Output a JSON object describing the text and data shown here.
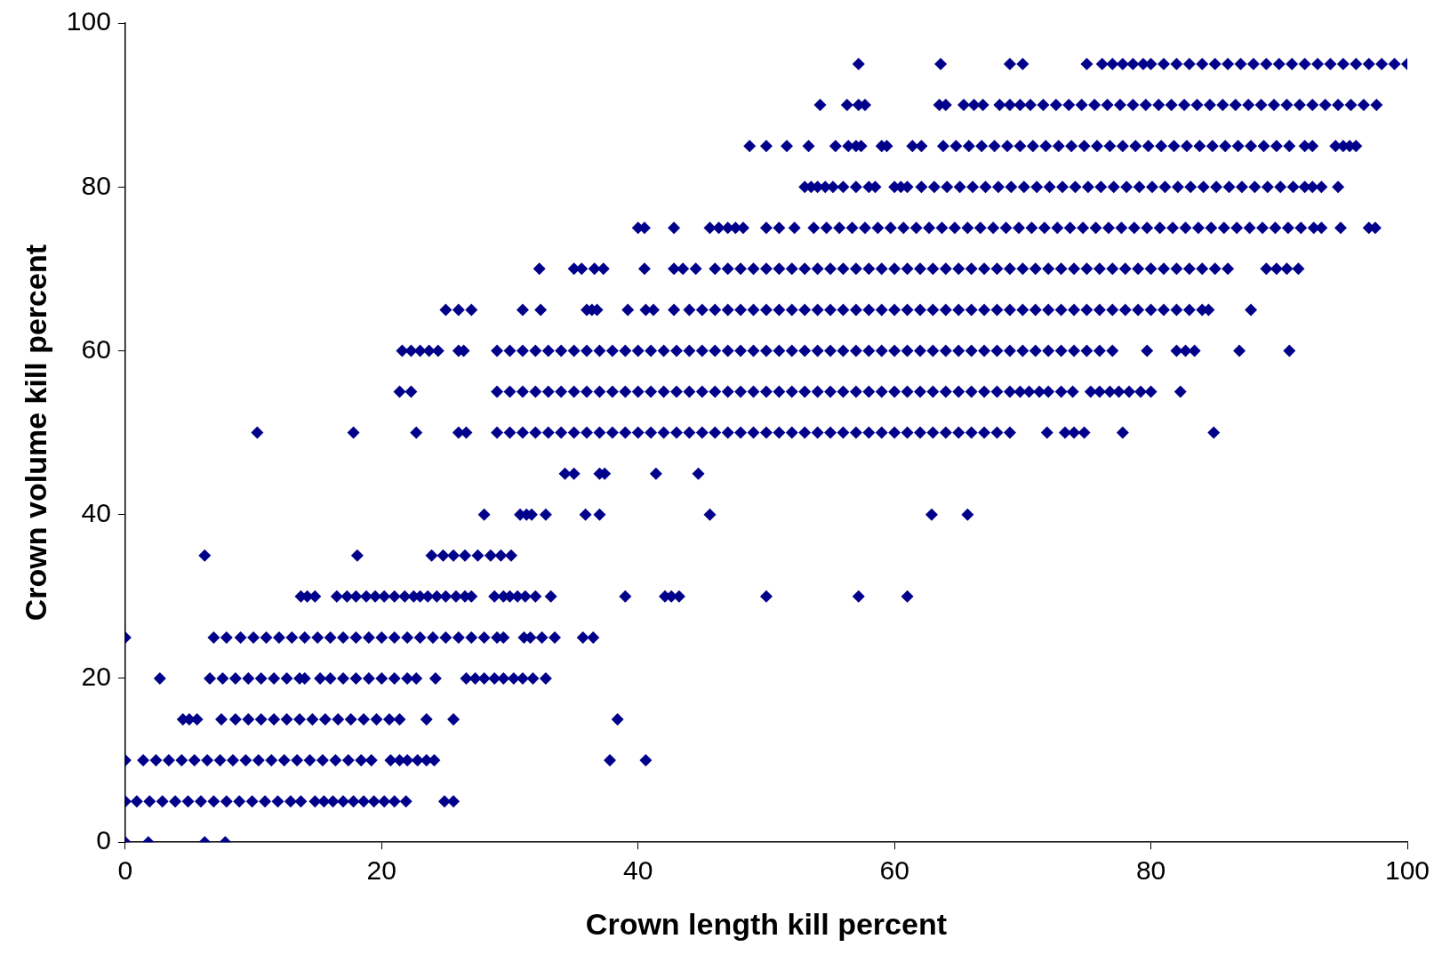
{
  "chart_data": {
    "type": "scatter",
    "xlabel": "Crown length kill percent",
    "ylabel": "Crown volume kill percent",
    "xlim": [
      0,
      100
    ],
    "ylim": [
      0,
      100
    ],
    "xticks": [
      0,
      20,
      40,
      60,
      80,
      100
    ],
    "yticks": [
      0,
      20,
      40,
      60,
      80,
      100
    ],
    "grid": false,
    "legend": false,
    "marker": "diamond",
    "series": [
      {
        "color": "#00008b",
        "x": [
          57.2,
          63.6,
          69,
          70,
          75,
          76.2,
          77,
          77.8,
          78.6,
          79.4,
          80,
          81,
          82,
          83,
          84,
          85,
          86,
          87,
          88,
          89,
          90,
          91,
          92,
          93,
          94,
          95,
          96,
          97,
          98,
          99,
          100
        ],
        "values": [
          95,
          95,
          95,
          95,
          95,
          95,
          95,
          95,
          95,
          95,
          95,
          95,
          95,
          95,
          95,
          95,
          95,
          95,
          95,
          95,
          95,
          95,
          95,
          95,
          95,
          95,
          95,
          95,
          95,
          95,
          95
        ]
      },
      {
        "color": "#00008b",
        "x": [
          54.2,
          56.3,
          57.2,
          57.7,
          63.5,
          64,
          65.4,
          66.2,
          66.9,
          68.2,
          69,
          69.8,
          70.6,
          71.6,
          72.6,
          73.6,
          74.6,
          75.6,
          76.6,
          77.6,
          78.6,
          79.6,
          80.6,
          81.6,
          82.6,
          83.6,
          84.6,
          85.6,
          86.6,
          87.6,
          88.6,
          89.6,
          90.6,
          91.6,
          92.6,
          93.6,
          94.6,
          95.6,
          96.6,
          97.6
        ],
        "values": [
          90,
          90,
          90,
          90,
          90,
          90,
          90,
          90,
          90,
          90,
          90,
          90,
          90,
          90,
          90,
          90,
          90,
          90,
          90,
          90,
          90,
          90,
          90,
          90,
          90,
          90,
          90,
          90,
          90,
          90,
          90,
          90,
          90,
          90,
          90,
          90,
          90,
          90,
          90,
          90
        ]
      },
      {
        "color": "#00008b",
        "x": [
          48.7,
          50,
          51.6,
          53.3,
          55.4,
          56.4,
          57,
          57.4,
          59,
          59.4,
          61.4,
          62.1,
          63.8,
          64.8,
          65.8,
          66.8,
          67.8,
          68.8,
          69.8,
          70.8,
          71.8,
          72.8,
          73.8,
          74.8,
          75.8,
          76.8,
          77.8,
          78.8,
          79.8,
          80.8,
          81.8,
          82.8,
          83.8,
          84.8,
          85.8,
          86.8,
          87.8,
          88.8,
          89.8,
          90.8,
          92,
          92.6,
          94.4,
          95,
          95.5,
          96
        ],
        "values": [
          85,
          85,
          85,
          85,
          85,
          85,
          85,
          85,
          85,
          85,
          85,
          85,
          85,
          85,
          85,
          85,
          85,
          85,
          85,
          85,
          85,
          85,
          85,
          85,
          85,
          85,
          85,
          85,
          85,
          85,
          85,
          85,
          85,
          85,
          85,
          85,
          85,
          85,
          85,
          85,
          85,
          85,
          85,
          85,
          85,
          85
        ]
      },
      {
        "color": "#00008b",
        "x": [
          53,
          53.5,
          54,
          54.6,
          55.2,
          56,
          57,
          58,
          58.5,
          60,
          60.5,
          61,
          62.1,
          63.1,
          64.1,
          65.1,
          66.1,
          67.1,
          68.1,
          69.1,
          70.1,
          71.1,
          72.1,
          73.1,
          74.1,
          75.1,
          76.1,
          77.1,
          78.1,
          79.1,
          80.1,
          81.1,
          82.1,
          83.1,
          84.1,
          85.1,
          86.1,
          87.1,
          88.1,
          89.1,
          90.1,
          91.1,
          92,
          92.6,
          93.3,
          94.6
        ],
        "values": [
          80,
          80,
          80,
          80,
          80,
          80,
          80,
          80,
          80,
          80,
          80,
          80,
          80,
          80,
          80,
          80,
          80,
          80,
          80,
          80,
          80,
          80,
          80,
          80,
          80,
          80,
          80,
          80,
          80,
          80,
          80,
          80,
          80,
          80,
          80,
          80,
          80,
          80,
          80,
          80,
          80,
          80,
          80,
          80,
          80,
          80
        ]
      },
      {
        "color": "#00008b",
        "x": [
          40,
          40.5,
          42.8,
          45.6,
          46.3,
          47,
          47.6,
          48.2,
          50,
          51,
          52.2,
          53.7,
          54.7,
          55.7,
          56.7,
          57.7,
          58.7,
          59.7,
          60.7,
          61.7,
          62.7,
          63.7,
          64.7,
          65.7,
          66.7,
          67.7,
          68.7,
          69.7,
          70.7,
          71.7,
          72.7,
          73.7,
          74.7,
          75.7,
          76.7,
          77.7,
          78.7,
          79.7,
          80.7,
          81.7,
          82.7,
          83.7,
          84.7,
          85.7,
          86.7,
          87.7,
          88.7,
          89.7,
          90.7,
          91.7,
          92.7,
          93.3,
          94.8,
          97,
          97.5
        ],
        "values": [
          75,
          75,
          75,
          75,
          75,
          75,
          75,
          75,
          75,
          75,
          75,
          75,
          75,
          75,
          75,
          75,
          75,
          75,
          75,
          75,
          75,
          75,
          75,
          75,
          75,
          75,
          75,
          75,
          75,
          75,
          75,
          75,
          75,
          75,
          75,
          75,
          75,
          75,
          75,
          75,
          75,
          75,
          75,
          75,
          75,
          75,
          75,
          75,
          75,
          75,
          75,
          75,
          75,
          75,
          75
        ]
      },
      {
        "color": "#00008b",
        "x": [
          32.3,
          35,
          35.6,
          36.6,
          37.3,
          40.5,
          42.8,
          43.5,
          44.5,
          46,
          47,
          48,
          49,
          50,
          51,
          52,
          53,
          54,
          55,
          56,
          57,
          58,
          59,
          60,
          61,
          62,
          63,
          64,
          65,
          66,
          67,
          68,
          69,
          70,
          71,
          72,
          73,
          74,
          75,
          76,
          77,
          78,
          79,
          80,
          81,
          82,
          83,
          84,
          85,
          86,
          89,
          89.8,
          90.6,
          91.5
        ],
        "values": [
          70,
          70,
          70,
          70,
          70,
          70,
          70,
          70,
          70,
          70,
          70,
          70,
          70,
          70,
          70,
          70,
          70,
          70,
          70,
          70,
          70,
          70,
          70,
          70,
          70,
          70,
          70,
          70,
          70,
          70,
          70,
          70,
          70,
          70,
          70,
          70,
          70,
          70,
          70,
          70,
          70,
          70,
          70,
          70,
          70,
          70,
          70,
          70,
          70,
          70,
          70,
          70,
          70,
          70
        ]
      },
      {
        "color": "#00008b",
        "x": [
          25,
          26,
          27,
          31,
          32.4,
          36,
          36.4,
          36.8,
          39.2,
          40.6,
          41.2,
          42.8,
          44,
          45,
          46,
          47,
          48,
          49,
          50,
          51,
          52,
          53,
          54,
          55,
          56,
          57,
          58,
          59,
          60,
          61,
          62,
          63,
          64,
          65,
          66,
          67,
          68,
          69,
          70,
          71,
          72,
          73,
          74,
          75,
          76,
          77,
          78,
          79,
          80,
          81,
          82,
          83,
          84,
          84.5,
          87.8
        ],
        "values": [
          65,
          65,
          65,
          65,
          65,
          65,
          65,
          65,
          65,
          65,
          65,
          65,
          65,
          65,
          65,
          65,
          65,
          65,
          65,
          65,
          65,
          65,
          65,
          65,
          65,
          65,
          65,
          65,
          65,
          65,
          65,
          65,
          65,
          65,
          65,
          65,
          65,
          65,
          65,
          65,
          65,
          65,
          65,
          65,
          65,
          65,
          65,
          65,
          65,
          65,
          65,
          65,
          65,
          65,
          65
        ]
      },
      {
        "color": "#00008b",
        "x": [
          21.6,
          22.3,
          23,
          23.7,
          24.4,
          26,
          26.4,
          29,
          30,
          31,
          32,
          33,
          34,
          35,
          36,
          37,
          38,
          39,
          40,
          41,
          42,
          43,
          44,
          45,
          46,
          47,
          48,
          49,
          50,
          51,
          52,
          53,
          54,
          55,
          56,
          57,
          58,
          59,
          60,
          61,
          62,
          63,
          64,
          65,
          66,
          67,
          68,
          69,
          70,
          71,
          72,
          73,
          74,
          75,
          76,
          77,
          79.7,
          82,
          82.7,
          83.4,
          86.9,
          90.8
        ],
        "values": [
          60,
          60,
          60,
          60,
          60,
          60,
          60,
          60,
          60,
          60,
          60,
          60,
          60,
          60,
          60,
          60,
          60,
          60,
          60,
          60,
          60,
          60,
          60,
          60,
          60,
          60,
          60,
          60,
          60,
          60,
          60,
          60,
          60,
          60,
          60,
          60,
          60,
          60,
          60,
          60,
          60,
          60,
          60,
          60,
          60,
          60,
          60,
          60,
          60,
          60,
          60,
          60,
          60,
          60,
          60,
          60,
          60,
          60,
          60,
          60,
          60,
          60
        ]
      },
      {
        "color": "#00008b",
        "x": [
          21.4,
          22.3,
          29,
          30,
          31,
          32,
          33,
          34,
          35,
          36,
          37,
          38,
          39,
          40,
          41,
          42,
          43,
          44,
          45,
          46,
          47,
          48,
          49,
          50,
          51,
          52,
          53,
          54,
          55,
          56,
          57,
          58,
          59,
          60,
          61,
          62,
          63,
          64,
          65,
          66,
          67,
          68,
          69,
          69.8,
          70.5,
          71.3,
          72,
          73,
          73.9,
          75.3,
          76,
          76.8,
          77.5,
          78.3,
          79.2,
          80,
          82.3
        ],
        "values": [
          55,
          55,
          55,
          55,
          55,
          55,
          55,
          55,
          55,
          55,
          55,
          55,
          55,
          55,
          55,
          55,
          55,
          55,
          55,
          55,
          55,
          55,
          55,
          55,
          55,
          55,
          55,
          55,
          55,
          55,
          55,
          55,
          55,
          55,
          55,
          55,
          55,
          55,
          55,
          55,
          55,
          55,
          55,
          55,
          55,
          55,
          55,
          55,
          55,
          55,
          55,
          55,
          55,
          55,
          55,
          55,
          55
        ]
      },
      {
        "color": "#00008b",
        "x": [
          10.3,
          17.8,
          22.7,
          26,
          26.6,
          29,
          30,
          31,
          32,
          33,
          34,
          35,
          36,
          37,
          38,
          39,
          40,
          41,
          42,
          43,
          44,
          45,
          46,
          47,
          48,
          49,
          50,
          51,
          52,
          53,
          54,
          55,
          56,
          57,
          58,
          59,
          60,
          61,
          62,
          63,
          64,
          65,
          66,
          67,
          68,
          69,
          71.9,
          73.3,
          74,
          74.8,
          77.8,
          84.9
        ],
        "values": [
          50,
          50,
          50,
          50,
          50,
          50,
          50,
          50,
          50,
          50,
          50,
          50,
          50,
          50,
          50,
          50,
          50,
          50,
          50,
          50,
          50,
          50,
          50,
          50,
          50,
          50,
          50,
          50,
          50,
          50,
          50,
          50,
          50,
          50,
          50,
          50,
          50,
          50,
          50,
          50,
          50,
          50,
          50,
          50,
          50,
          50,
          50,
          50,
          50,
          50,
          50,
          50
        ]
      },
      {
        "color": "#00008b",
        "x": [
          34.3,
          35,
          37,
          37.4,
          41.4,
          44.7
        ],
        "values": [
          45,
          45,
          45,
          45,
          45,
          45
        ]
      },
      {
        "color": "#00008b",
        "x": [
          28,
          30.8,
          31.3,
          31.7,
          32.8,
          35.9,
          37,
          45.6,
          62.9,
          65.7
        ],
        "values": [
          40,
          40,
          40,
          40,
          40,
          40,
          40,
          40,
          40,
          40
        ]
      },
      {
        "color": "#00008b",
        "x": [
          6.2,
          18.1,
          23.9,
          24.8,
          25.6,
          26.5,
          27.5,
          28.5,
          29.3,
          30.1
        ],
        "values": [
          35,
          35,
          35,
          35,
          35,
          35,
          35,
          35,
          35,
          35
        ]
      },
      {
        "color": "#00008b",
        "x": [
          13.7,
          14.2,
          14.8,
          16.5,
          17.3,
          18,
          18.8,
          19.5,
          20.2,
          21,
          21.8,
          22.5,
          23,
          23.6,
          24.3,
          25,
          25.8,
          26.5,
          27,
          28.8,
          29.5,
          30,
          30.6,
          31.2,
          32,
          33.2,
          39,
          42.1,
          42.6,
          43.2,
          50,
          57.2,
          61
        ],
        "values": [
          30,
          30,
          30,
          30,
          30,
          30,
          30,
          30,
          30,
          30,
          30,
          30,
          30,
          30,
          30,
          30,
          30,
          30,
          30,
          30,
          30,
          30,
          30,
          30,
          30,
          30,
          30,
          30,
          30,
          30,
          30,
          30,
          30
        ]
      },
      {
        "color": "#00008b",
        "x": [
          0,
          6.9,
          7.9,
          9,
          10,
          11,
          12,
          13,
          14,
          15,
          16,
          17,
          18,
          19,
          20,
          21,
          22,
          23,
          24,
          25,
          26,
          27,
          28,
          29,
          29.5,
          31.1,
          31.6,
          32.5,
          33.5,
          35.7,
          36.5
        ],
        "values": [
          25,
          25,
          25,
          25,
          25,
          25,
          25,
          25,
          25,
          25,
          25,
          25,
          25,
          25,
          25,
          25,
          25,
          25,
          25,
          25,
          25,
          25,
          25,
          25,
          25,
          25,
          25,
          25,
          25,
          25,
          25
        ]
      },
      {
        "color": "#00008b",
        "x": [
          2.7,
          6.6,
          7.6,
          8.6,
          9.6,
          10.6,
          11.6,
          12.6,
          13.6,
          14,
          15.2,
          16,
          17,
          18,
          19,
          20,
          21,
          22,
          22.7,
          24.2,
          26.6,
          27.3,
          28,
          28.8,
          29.5,
          30.3,
          31,
          31.8,
          32.8
        ],
        "values": [
          20,
          20,
          20,
          20,
          20,
          20,
          20,
          20,
          20,
          20,
          20,
          20,
          20,
          20,
          20,
          20,
          20,
          20,
          20,
          20,
          20,
          20,
          20,
          20,
          20,
          20,
          20,
          20,
          20
        ]
      },
      {
        "color": "#00008b",
        "x": [
          4.5,
          5,
          5.6,
          7.5,
          8.6,
          9.6,
          10.6,
          11.6,
          12.6,
          13.6,
          14.6,
          15.6,
          16.6,
          17.6,
          18.6,
          19.6,
          20.6,
          21.4,
          23.5,
          25.6,
          38.4
        ],
        "values": [
          15,
          15,
          15,
          15,
          15,
          15,
          15,
          15,
          15,
          15,
          15,
          15,
          15,
          15,
          15,
          15,
          15,
          15,
          15,
          15,
          15
        ]
      },
      {
        "color": "#00008b",
        "x": [
          0,
          1.4,
          2.4,
          3.4,
          4.4,
          5.4,
          6.4,
          7.4,
          8.4,
          9.4,
          10.4,
          11.4,
          12.4,
          13.4,
          14.4,
          15.4,
          16.4,
          17.4,
          18.4,
          19.2,
          20.7,
          21.4,
          22,
          22.8,
          23.5,
          24.1,
          37.8,
          40.6
        ],
        "values": [
          10,
          10,
          10,
          10,
          10,
          10,
          10,
          10,
          10,
          10,
          10,
          10,
          10,
          10,
          10,
          10,
          10,
          10,
          10,
          10,
          10,
          10,
          10,
          10,
          10,
          10,
          10,
          10
        ]
      },
      {
        "color": "#00008b",
        "x": [
          0,
          0.9,
          1.9,
          2.9,
          3.9,
          4.9,
          5.9,
          6.9,
          7.9,
          8.9,
          9.9,
          10.9,
          11.9,
          12.9,
          13.7,
          14.8,
          15.5,
          16.2,
          17,
          17.8,
          18.6,
          19.4,
          20.2,
          21,
          21.9,
          24.9,
          25.6
        ],
        "values": [
          5,
          5,
          5,
          5,
          5,
          5,
          5,
          5,
          5,
          5,
          5,
          5,
          5,
          5,
          5,
          5,
          5,
          5,
          5,
          5,
          5,
          5,
          5,
          5,
          5,
          5,
          5
        ]
      },
      {
        "color": "#00008b",
        "x": [
          0,
          1.8,
          6.2,
          7.8
        ],
        "values": [
          0,
          0,
          0,
          0
        ]
      }
    ]
  }
}
